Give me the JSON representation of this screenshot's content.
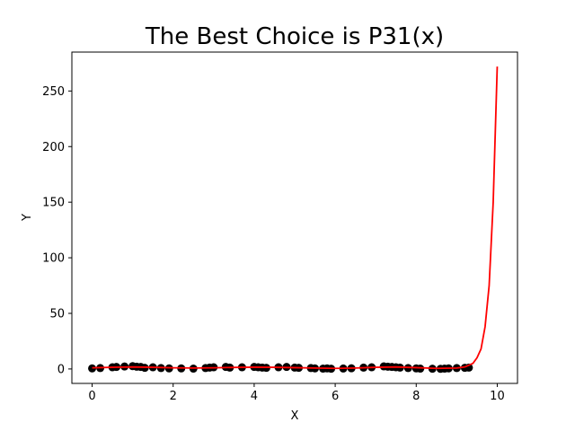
{
  "chart_data": {
    "type": "scatter",
    "title": "The Best Choice is P31(x)",
    "xlabel": "X",
    "ylabel": "Y",
    "xlim": [
      -0.5,
      10.5
    ],
    "ylim": [
      -13,
      285
    ],
    "xticks": [
      0,
      2,
      4,
      6,
      8,
      10
    ],
    "yticks": [
      0,
      50,
      100,
      150,
      200,
      250
    ],
    "grid": false,
    "series": [
      {
        "kind": "scatter",
        "color": "#000000",
        "x": [
          0.0,
          0.2,
          0.5,
          0.6,
          0.8,
          1.0,
          1.1,
          1.2,
          1.3,
          1.5,
          1.7,
          1.9,
          2.2,
          2.5,
          2.8,
          2.9,
          3.0,
          3.3,
          3.4,
          3.7,
          4.0,
          4.1,
          4.2,
          4.3,
          4.6,
          4.8,
          5.0,
          5.1,
          5.4,
          5.5,
          5.7,
          5.8,
          5.9,
          6.2,
          6.4,
          6.7,
          6.9,
          7.2,
          7.3,
          7.4,
          7.5,
          7.6,
          7.8,
          8.0,
          8.1,
          8.4,
          8.6,
          8.7,
          8.8,
          9.0,
          9.2,
          9.3
        ],
        "y": [
          0.5,
          0.8,
          1.5,
          1.8,
          2.2,
          2.5,
          2.0,
          1.8,
          1.0,
          1.5,
          0.8,
          0.5,
          0.5,
          0.3,
          0.8,
          1.2,
          1.5,
          1.8,
          1.2,
          1.5,
          1.8,
          1.5,
          1.2,
          1.0,
          1.5,
          1.8,
          1.2,
          1.0,
          0.8,
          0.5,
          0.3,
          0.5,
          0.2,
          0.4,
          0.6,
          1.2,
          1.5,
          2.3,
          2.0,
          1.8,
          1.5,
          1.2,
          0.8,
          0.5,
          0.3,
          0.2,
          0.1,
          0.3,
          0.5,
          0.8,
          1.0,
          1.2
        ]
      },
      {
        "kind": "line",
        "color": "#ff0000",
        "x": [
          0,
          0.5,
          1,
          1.5,
          2,
          2.5,
          3,
          3.5,
          4,
          4.5,
          5,
          5.5,
          6,
          6.5,
          7,
          7.5,
          8,
          8.5,
          9,
          9.2,
          9.4,
          9.5,
          9.6,
          9.7,
          9.8,
          9.9,
          10.0
        ],
        "y": [
          1,
          1.5,
          1.8,
          1.5,
          1,
          0.8,
          1,
          1.4,
          1.6,
          1.5,
          1.2,
          0.8,
          0.5,
          0.8,
          1.5,
          1.8,
          1.2,
          0.5,
          0.8,
          1.8,
          5,
          10,
          18,
          38,
          75,
          150,
          272
        ]
      }
    ]
  }
}
